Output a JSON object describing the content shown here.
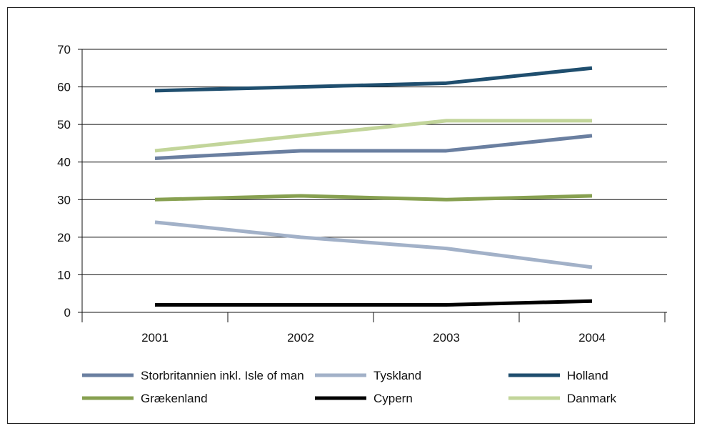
{
  "chart_data": {
    "type": "line",
    "title": "",
    "xlabel": "",
    "ylabel": "",
    "ylim": [
      0,
      70
    ],
    "yticks": [
      0,
      10,
      20,
      30,
      40,
      50,
      60,
      70
    ],
    "categories": [
      "2001",
      "2002",
      "2003",
      "2004"
    ],
    "grid": true,
    "legend_position": "bottom",
    "series": [
      {
        "name": "Storbritannien inkl. Isle of man",
        "color": "#6a7fa0",
        "values": [
          41,
          43,
          43,
          47
        ]
      },
      {
        "name": "Tyskland",
        "color": "#a2b1c8",
        "values": [
          24,
          20,
          17,
          12
        ]
      },
      {
        "name": "Holland",
        "color": "#1f4e6e",
        "values": [
          59,
          60,
          61,
          65
        ]
      },
      {
        "name": "Grækenland",
        "color": "#87a050",
        "values": [
          30,
          31,
          30,
          31
        ]
      },
      {
        "name": "Cypern",
        "color": "#000000",
        "values": [
          2,
          2,
          2,
          3
        ]
      },
      {
        "name": "Danmark",
        "color": "#c2d59a",
        "values": [
          43,
          47,
          51,
          51
        ]
      }
    ]
  }
}
